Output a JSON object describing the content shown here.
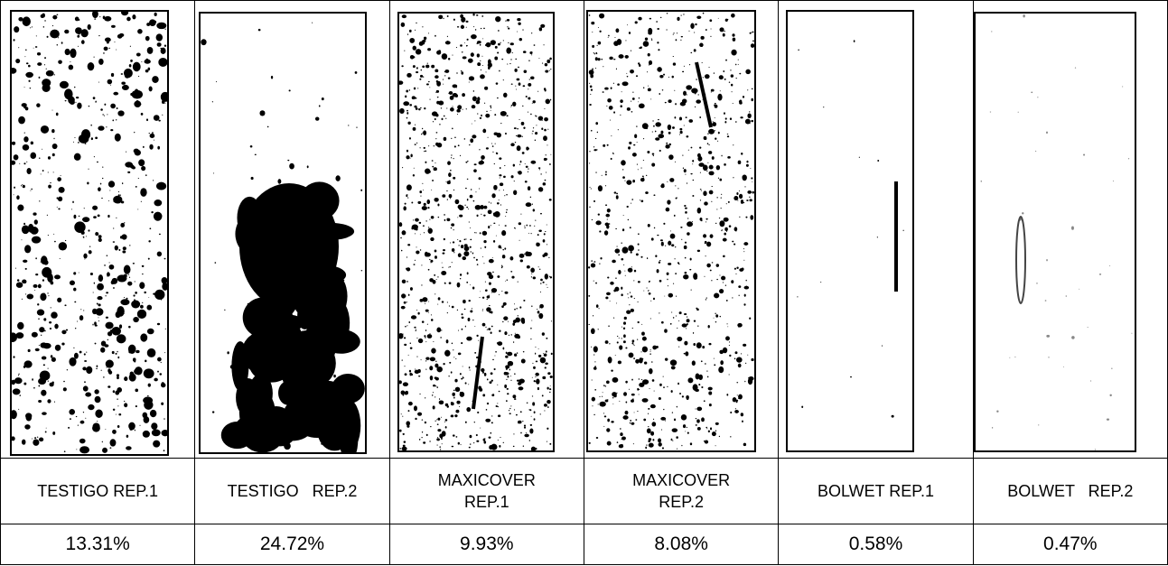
{
  "table": {
    "columns": [
      {
        "label": "TESTIGO REP.1",
        "value": "13.31%"
      },
      {
        "label": "TESTIGO   REP.2",
        "value": "24.72%"
      },
      {
        "label": "MAXICOVER REP.1",
        "value": "9.93%"
      },
      {
        "label": "MAXICOVER REP.2",
        "value": "8.08%"
      },
      {
        "label": "BOLWET REP.1",
        "value": "0.58%"
      },
      {
        "label": "BOLWET   REP.2",
        "value": "0.47%"
      }
    ]
  }
}
